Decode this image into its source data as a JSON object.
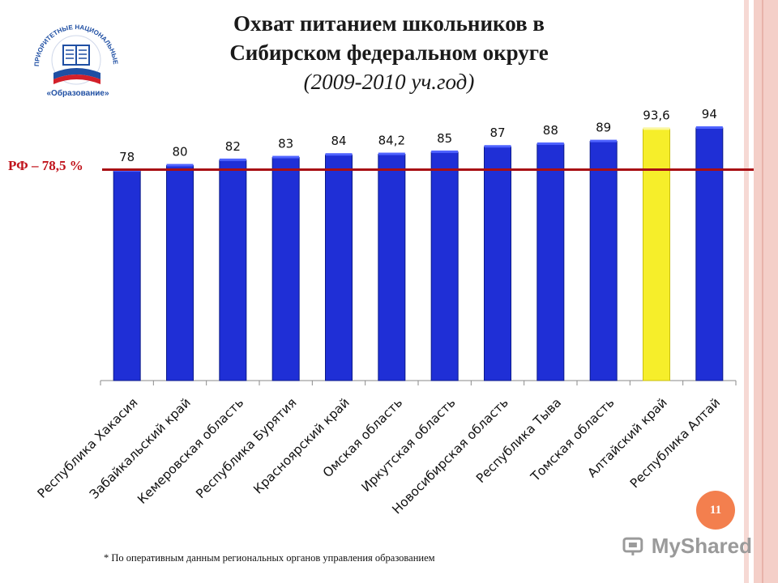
{
  "slide": {
    "title_line1": "Охват питанием школьников в",
    "title_line2": "Сибирском федеральном округе",
    "title_line3": "(2009-2010 уч.год)",
    "footnote": "* По оперативным данным региональных органов управления образованием",
    "page_number": "11",
    "watermark": "MyShared",
    "logo_text_arc": "ПРИОРИТЕТНЫЕ НАЦИОНАЛЬНЫЕ ПРОЕКТЫ",
    "logo_text_bottom": "«Образование»"
  },
  "colors": {
    "bar_default": "#1f2fd6",
    "bar_highlight": "#f6ee2a",
    "reference_line": "#a80f14",
    "reference_label": "#c0121a",
    "axis": "#8a8a8a"
  },
  "chart_data": {
    "type": "bar",
    "title": "Охват питанием школьников в Сибирском федеральном округе (2009-2010 уч.год)",
    "categories": [
      "Республика Хакасия",
      "Забайкальский край",
      "Кемеровская область",
      "Республика Бурятия",
      "Красноярский край",
      "Омская область",
      "Иркутская область",
      "Новосибирская область",
      "Республика Тыва",
      "Томская область",
      "Алтайский край",
      "Республика Алтай"
    ],
    "values": [
      78,
      80,
      82,
      83,
      84,
      84.2,
      85,
      87,
      88,
      89,
      93.6,
      94
    ],
    "data_labels": [
      "78",
      "80",
      "82",
      "83",
      "84",
      "84,2",
      "85",
      "87",
      "88",
      "89",
      "93,6",
      "94"
    ],
    "highlight_index": 10,
    "ylim": [
      0,
      100
    ],
    "reference_line": {
      "value": 78.5,
      "label": "РФ – 78,5 %"
    },
    "grid": false,
    "legend": "none"
  }
}
